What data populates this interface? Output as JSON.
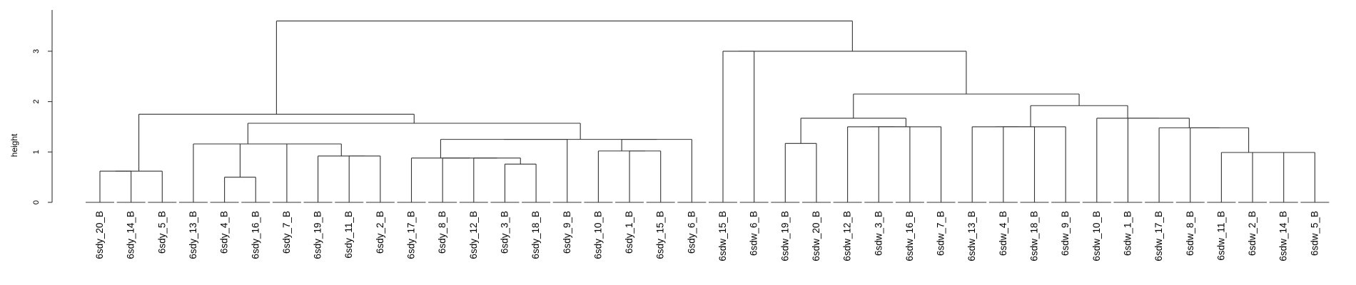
{
  "chart_data": {
    "type": "dendrogram",
    "ylabel": "height",
    "yticks": [
      0,
      1,
      2,
      3
    ],
    "ylim": [
      0,
      3.6
    ],
    "leaves": [
      "6sdy_20_B",
      "6sdy_14_B",
      "6sdy_5_B",
      "6sdy_13_B",
      "6sdy_4_B",
      "6sdy_16_B",
      "6sdy_7_B",
      "6sdy_19_B",
      "6sdy_11_B",
      "6sdy_2_B",
      "6sdy_17_B",
      "6sdy_8_B",
      "6sdy_12_B",
      "6sdy_3_B",
      "6sdy_18_B",
      "6sdy_9_B",
      "6sdy_10_B",
      "6sdy_1_B",
      "6sdy_15_B",
      "6sdy_6_B",
      "6sdw_15_B",
      "6sdw_6_B",
      "6sdw_19_B",
      "6sdw_20_B",
      "6sdw_12_B",
      "6sdw_3_B",
      "6sdw_16_B",
      "6sdw_7_B",
      "6sdw_13_B",
      "6sdw_4_B",
      "6sdw_18_B",
      "6sdw_9_B",
      "6sdw_10_B",
      "6sdw_1_B",
      "6sdw_17_B",
      "6sdw_8_B",
      "6sdw_11_B",
      "6sdw_2_B",
      "6sdw_14_B",
      "6sdw_5_B"
    ],
    "merges": [
      {
        "id": "m1",
        "children": [
          "L0",
          "L1"
        ],
        "height": 0.62
      },
      {
        "id": "m2",
        "children": [
          "L4",
          "L5"
        ],
        "height": 0.5
      },
      {
        "id": "m3",
        "children": [
          "m2",
          "L6"
        ],
        "height": 1.16
      },
      {
        "id": "m4",
        "children": [
          "L8",
          "L9"
        ],
        "height": 0.92
      },
      {
        "id": "m5",
        "children": [
          "L7",
          "m4"
        ],
        "height": 0.92
      },
      {
        "id": "m6",
        "children": [
          "m3",
          "m5"
        ],
        "height": 1.16
      },
      {
        "id": "m7",
        "children": [
          "L3",
          "m6"
        ],
        "height": 1.16
      },
      {
        "id": "m8",
        "children": [
          "L13",
          "L14"
        ],
        "height": 0.76
      },
      {
        "id": "m9",
        "children": [
          "L12",
          "m8"
        ],
        "height": 0.88
      },
      {
        "id": "m10",
        "children": [
          "L11",
          "m9"
        ],
        "height": 0.88
      },
      {
        "id": "m11",
        "children": [
          "L10",
          "m10"
        ],
        "height": 0.88
      },
      {
        "id": "m12",
        "children": [
          "m11",
          "L15"
        ],
        "height": 1.25
      },
      {
        "id": "m13",
        "children": [
          "L17",
          "L18"
        ],
        "height": 1.02
      },
      {
        "id": "m14",
        "children": [
          "L16",
          "m13"
        ],
        "height": 1.02
      },
      {
        "id": "m15",
        "children": [
          "m14",
          "L19"
        ],
        "height": 1.25
      },
      {
        "id": "m16",
        "children": [
          "m12",
          "m15"
        ],
        "height": 1.25
      },
      {
        "id": "m17",
        "children": [
          "m7",
          "m16"
        ],
        "height": 1.57
      },
      {
        "id": "m18",
        "children": [
          "m1",
          "L2"
        ],
        "height": 0.62
      },
      {
        "id": "m19",
        "children": [
          "m18",
          "m17"
        ],
        "height": 1.75
      },
      {
        "id": "m20",
        "children": [
          "L22",
          "L23"
        ],
        "height": 1.17
      },
      {
        "id": "m21",
        "children": [
          "L25",
          "L26"
        ],
        "height": 1.5
      },
      {
        "id": "m22",
        "children": [
          "L24",
          "m21"
        ],
        "height": 1.5
      },
      {
        "id": "m23",
        "children": [
          "m22",
          "L27"
        ],
        "height": 1.5
      },
      {
        "id": "m24",
        "children": [
          "m20",
          "m23"
        ],
        "height": 1.67
      },
      {
        "id": "m25",
        "children": [
          "L29",
          "L30"
        ],
        "height": 1.5
      },
      {
        "id": "m26",
        "children": [
          "L28",
          "m25"
        ],
        "height": 1.5
      },
      {
        "id": "m27",
        "children": [
          "m26",
          "L31"
        ],
        "height": 1.5
      },
      {
        "id": "m28",
        "children": [
          "L38",
          "L39"
        ],
        "height": 0.99
      },
      {
        "id": "m29",
        "children": [
          "L37",
          "m28"
        ],
        "height": 0.99
      },
      {
        "id": "m30",
        "children": [
          "L36",
          "m29"
        ],
        "height": 0.99
      },
      {
        "id": "m31",
        "children": [
          "L35",
          "m30"
        ],
        "height": 1.48
      },
      {
        "id": "m32",
        "children": [
          "L34",
          "m31"
        ],
        "height": 1.48
      },
      {
        "id": "m33",
        "children": [
          "L33",
          "m32"
        ],
        "height": 1.67
      },
      {
        "id": "m34",
        "children": [
          "L32",
          "m33"
        ],
        "height": 1.67
      },
      {
        "id": "m35",
        "children": [
          "m27",
          "m34"
        ],
        "height": 1.92
      },
      {
        "id": "m36",
        "children": [
          "m24",
          "m35"
        ],
        "height": 2.15
      },
      {
        "id": "m37",
        "children": [
          "L20",
          "L21"
        ],
        "height": 3.0
      },
      {
        "id": "m38",
        "children": [
          "m37",
          "m36"
        ],
        "height": 3.0
      },
      {
        "id": "m39",
        "children": [
          "m19",
          "m38"
        ],
        "height": 3.6
      }
    ]
  }
}
